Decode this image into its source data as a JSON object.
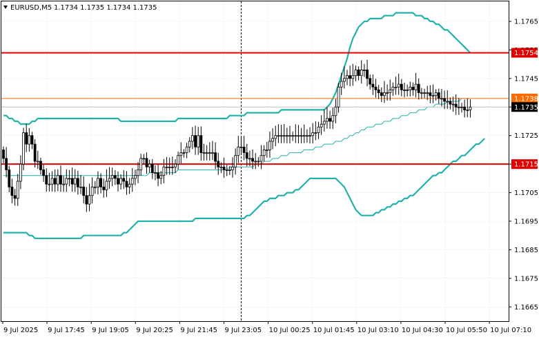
{
  "chart_header": {
    "symbol": "EURUSD,M5",
    "ohlc": "1.1734 1.1735 1.1734 1.1735"
  },
  "chart_data": {
    "type": "candlestick",
    "ylim": [
      1.166,
      1.1772
    ],
    "y_ticks": [
      "1.1765",
      "1.1755",
      "1.1745",
      "1.1735",
      "1.1725",
      "1.1715",
      "1.1705",
      "1.1695",
      "1.1685",
      "1.1675",
      "1.1665"
    ],
    "x_ticks": [
      "9 Jul 2025",
      "9 Jul 17:45",
      "9 Jul 19:05",
      "9 Jul 20:25",
      "9 Jul 21:45",
      "9 Jul 23:05",
      "10 Jul 00:25",
      "10 Jul 01:45",
      "10 Jul 03:10",
      "10 Jul 04:30",
      "10 Jul 05:50",
      "10 Jul 07:10"
    ],
    "levels": [
      {
        "value": 1.1754,
        "label": "1.1754",
        "color": "#e00000",
        "style": "thick"
      },
      {
        "value": 1.1738,
        "label": "1.1738",
        "color": "#ff6a00",
        "style": "thin"
      },
      {
        "value": 1.1715,
        "label": "1.1715",
        "color": "#e00000",
        "style": "thick"
      }
    ],
    "current_price": {
      "value": 1.1735,
      "label": "1.1735",
      "color": "#000000"
    },
    "period_separator_index": 83,
    "closes": [
      1.1717,
      1.1713,
      1.1707,
      1.1704,
      1.1703,
      1.1709,
      1.1715,
      1.1726,
      1.1722,
      1.1725,
      1.1722,
      1.1716,
      1.1716,
      1.1713,
      1.1711,
      1.1708,
      1.1708,
      1.171,
      1.1708,
      1.1711,
      1.1708,
      1.1708,
      1.171,
      1.171,
      1.1708,
      1.171,
      1.1707,
      1.1707,
      1.1704,
      1.1701,
      1.1704,
      1.1707,
      1.1707,
      1.171,
      1.1707,
      1.1706,
      1.1709,
      1.171,
      1.1711,
      1.171,
      1.1708,
      1.171,
      1.1709,
      1.1707,
      1.1708,
      1.171,
      1.1711,
      1.1713,
      1.1717,
      1.1717,
      1.1714,
      1.1715,
      1.1712,
      1.1712,
      1.171,
      1.1711,
      1.1714,
      1.1714,
      1.1714,
      1.1714,
      1.1715,
      1.1718,
      1.1719,
      1.1719,
      1.1721,
      1.1723,
      1.1725,
      1.1721,
      1.1725,
      1.1719,
      1.1719,
      1.1719,
      1.1719,
      1.1719,
      1.1716,
      1.1714,
      1.1714,
      1.1713,
      1.1713,
      1.1713,
      1.1714,
      1.1718,
      1.1721,
      1.1721,
      1.1719,
      1.1717,
      1.1717,
      1.1716,
      1.1716,
      1.1716,
      1.1718,
      1.172,
      1.172,
      1.1723,
      1.1724,
      1.1725,
      1.1725,
      1.1725,
      1.1725,
      1.1725,
      1.1725,
      1.1725,
      1.1725,
      1.1725,
      1.1725,
      1.1725,
      1.1725,
      1.1725,
      1.1726,
      1.1726,
      1.1728,
      1.1729,
      1.173,
      1.1731,
      1.173,
      1.1732,
      1.1735,
      1.1742,
      1.1744,
      1.1745,
      1.1746,
      1.1745,
      1.1746,
      1.1748,
      1.1746,
      1.1748,
      1.1748,
      1.1745,
      1.1743,
      1.1742,
      1.1741,
      1.174,
      1.1739,
      1.174,
      1.174,
      1.1741,
      1.1742,
      1.1742,
      1.1743,
      1.1741,
      1.1741,
      1.1741,
      1.1742,
      1.1741,
      1.1743,
      1.174,
      1.174,
      1.174,
      1.174,
      1.1739,
      1.1739,
      1.174,
      1.1738,
      1.1738,
      1.1737,
      1.1737,
      1.1736,
      1.1736,
      1.1735,
      1.1735,
      1.1735,
      1.1734,
      1.1734,
      1.1735
    ],
    "bb_upper": [
      1.1732,
      1.1732,
      1.1731,
      1.1731,
      1.173,
      1.173,
      1.1729,
      1.1729,
      1.1729,
      1.1729,
      1.173,
      1.173,
      1.1731,
      1.1731,
      1.1731,
      1.1731,
      1.1731,
      1.1731,
      1.1731,
      1.1731,
      1.1731,
      1.1731,
      1.1731,
      1.1731,
      1.1731,
      1.1731,
      1.1731,
      1.1731,
      1.1731,
      1.1731,
      1.1731,
      1.1731,
      1.1731,
      1.1731,
      1.1731,
      1.1731,
      1.1731,
      1.1731,
      1.1731,
      1.1731,
      1.1731,
      1.173,
      1.173,
      1.173,
      1.173,
      1.173,
      1.173,
      1.173,
      1.173,
      1.173,
      1.173,
      1.173,
      1.173,
      1.173,
      1.173,
      1.173,
      1.173,
      1.173,
      1.173,
      1.173,
      1.173,
      1.1731,
      1.1731,
      1.1731,
      1.1731,
      1.1731,
      1.1731,
      1.1731,
      1.1731,
      1.1731,
      1.1731,
      1.1731,
      1.1731,
      1.1731,
      1.1731,
      1.1731,
      1.1731,
      1.1731,
      1.1731,
      1.1732,
      1.1732,
      1.1732,
      1.1732,
      1.1732,
      1.1732,
      1.1733,
      1.1733,
      1.1733,
      1.1733,
      1.1733,
      1.1733,
      1.1733,
      1.1733,
      1.1733,
      1.1733,
      1.1733,
      1.1733,
      1.1734,
      1.1734,
      1.1734,
      1.1734,
      1.1734,
      1.1734,
      1.1734,
      1.1734,
      1.1734,
      1.1734,
      1.1734,
      1.1734,
      1.1734,
      1.1734,
      1.1734,
      1.1734,
      1.1735,
      1.1736,
      1.1738,
      1.174,
      1.1743,
      1.1746,
      1.1749,
      1.1752,
      1.1756,
      1.1759,
      1.1761,
      1.1763,
      1.1764,
      1.1765,
      1.1765,
      1.1766,
      1.1766,
      1.1766,
      1.1766,
      1.1766,
      1.1767,
      1.1767,
      1.1767,
      1.1767,
      1.1768,
      1.1768,
      1.1768,
      1.1768,
      1.1768,
      1.1768,
      1.1768,
      1.1767,
      1.1767,
      1.1767,
      1.1766,
      1.1766,
      1.1765,
      1.1765,
      1.1764,
      1.1764,
      1.1763,
      1.1762,
      1.1762,
      1.1761,
      1.176,
      1.1759,
      1.1758,
      1.1757,
      1.1756,
      1.1755,
      1.1754
    ],
    "bb_middle": [
      1.1711,
      1.1711,
      1.1711,
      1.1711,
      1.1711,
      1.1711,
      1.1711,
      1.1711,
      1.1711,
      1.1711,
      1.1711,
      1.1711,
      1.1711,
      1.1711,
      1.1711,
      1.1711,
      1.1711,
      1.1711,
      1.1711,
      1.1711,
      1.1711,
      1.1711,
      1.1711,
      1.1711,
      1.1711,
      1.1711,
      1.1711,
      1.1711,
      1.1711,
      1.1711,
      1.1711,
      1.1711,
      1.1711,
      1.1711,
      1.1711,
      1.1711,
      1.1711,
      1.1711,
      1.1711,
      1.1711,
      1.1711,
      1.1711,
      1.1711,
      1.1711,
      1.1711,
      1.1711,
      1.1711,
      1.1711,
      1.1711,
      1.1711,
      1.1711,
      1.1712,
      1.1712,
      1.1712,
      1.1712,
      1.1712,
      1.1712,
      1.1712,
      1.1712,
      1.1712,
      1.1712,
      1.1713,
      1.1713,
      1.1713,
      1.1713,
      1.1713,
      1.1713,
      1.1713,
      1.1713,
      1.1713,
      1.1713,
      1.1713,
      1.1713,
      1.1713,
      1.1713,
      1.1713,
      1.1713,
      1.1713,
      1.1713,
      1.1714,
      1.1714,
      1.1714,
      1.1714,
      1.1714,
      1.1714,
      1.1714,
      1.1714,
      1.1714,
      1.1715,
      1.1715,
      1.1715,
      1.1716,
      1.1716,
      1.1716,
      1.1717,
      1.1717,
      1.1717,
      1.1718,
      1.1718,
      1.1718,
      1.1719,
      1.1719,
      1.1719,
      1.1719,
      1.1719,
      1.172,
      1.172,
      1.172,
      1.172,
      1.1721,
      1.1721,
      1.1721,
      1.1722,
      1.1722,
      1.1722,
      1.1722,
      1.1723,
      1.1723,
      1.1723,
      1.1724,
      1.1724,
      1.1725,
      1.1725,
      1.1726,
      1.1726,
      1.1727,
      1.1727,
      1.1728,
      1.1728,
      1.1728,
      1.1729,
      1.1729,
      1.1729,
      1.173,
      1.173,
      1.173,
      1.1731,
      1.1731,
      1.1731,
      1.1732,
      1.1732,
      1.1732,
      1.1733,
      1.1733,
      1.1733,
      1.1734,
      1.1734,
      1.1734,
      1.1735,
      1.1735,
      1.1735,
      1.1736,
      1.1736,
      1.1736,
      1.1736,
      1.1737,
      1.1737,
      1.1737,
      1.1737,
      1.1737,
      1.1738,
      1.1738,
      1.1738,
      1.1738
    ],
    "bb_lower": [
      1.1691,
      1.1691,
      1.1691,
      1.1691,
      1.1691,
      1.1691,
      1.1691,
      1.1691,
      1.1691,
      1.169,
      1.169,
      1.1689,
      1.1689,
      1.1689,
      1.1689,
      1.1689,
      1.1689,
      1.1689,
      1.1689,
      1.1689,
      1.1689,
      1.1689,
      1.1689,
      1.1689,
      1.1689,
      1.1689,
      1.1689,
      1.1689,
      1.169,
      1.169,
      1.169,
      1.169,
      1.169,
      1.169,
      1.169,
      1.169,
      1.169,
      1.169,
      1.169,
      1.169,
      1.169,
      1.169,
      1.1691,
      1.1691,
      1.1692,
      1.1693,
      1.1694,
      1.1695,
      1.1695,
      1.1695,
      1.1695,
      1.1695,
      1.1695,
      1.1695,
      1.1695,
      1.1695,
      1.1695,
      1.1695,
      1.1695,
      1.1695,
      1.1695,
      1.1695,
      1.1695,
      1.1695,
      1.1695,
      1.1695,
      1.1695,
      1.1696,
      1.1696,
      1.1696,
      1.1696,
      1.1696,
      1.1696,
      1.1696,
      1.1696,
      1.1696,
      1.1696,
      1.1696,
      1.1696,
      1.1696,
      1.1696,
      1.1696,
      1.1696,
      1.1696,
      1.1696,
      1.1697,
      1.1697,
      1.1698,
      1.1699,
      1.17,
      1.1701,
      1.1702,
      1.1702,
      1.1703,
      1.1703,
      1.1703,
      1.1704,
      1.1704,
      1.1704,
      1.1705,
      1.1705,
      1.1705,
      1.1706,
      1.1706,
      1.1707,
      1.1708,
      1.1709,
      1.171,
      1.171,
      1.171,
      1.171,
      1.171,
      1.171,
      1.171,
      1.171,
      1.171,
      1.171,
      1.1709,
      1.1708,
      1.1707,
      1.1705,
      1.1703,
      1.1701,
      1.1699,
      1.1698,
      1.1697,
      1.1697,
      1.1697,
      1.1697,
      1.1697,
      1.1698,
      1.1698,
      1.1699,
      1.1699,
      1.17,
      1.17,
      1.1701,
      1.1701,
      1.1702,
      1.1702,
      1.1703,
      1.1703,
      1.1704,
      1.1704,
      1.1705,
      1.1706,
      1.1707,
      1.1708,
      1.1709,
      1.171,
      1.1711,
      1.1711,
      1.1712,
      1.1712,
      1.1713,
      1.1714,
      1.1715,
      1.1716,
      1.1716,
      1.1717,
      1.1718,
      1.1718,
      1.1719,
      1.172,
      1.1721,
      1.1722,
      1.1722,
      1.1723,
      1.1724
    ],
    "colors": {
      "candle": "#000000",
      "bollinger_bands": "#20b2aa",
      "bollinger_middle": "#20b2aa",
      "grid": "#c0c0c0",
      "separator": "#000000",
      "current_price_line": "#c0c0c0"
    }
  }
}
